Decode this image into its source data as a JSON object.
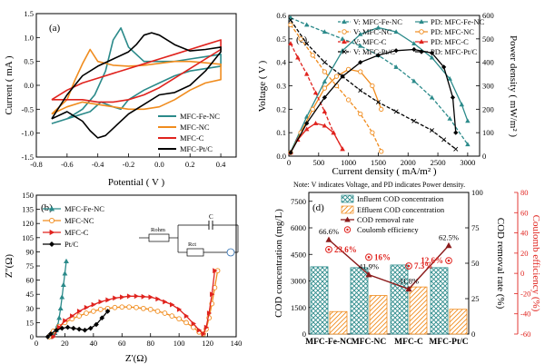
{
  "figure": {
    "note": "Note: V indicates Voltage, and PD indicates Power density."
  },
  "chart_data": [
    {
      "type": "line",
      "panel": "(a)",
      "xlabel": "Potential ( V )",
      "ylabel": "Current ( mA )",
      "xlim": [
        -0.8,
        0.5
      ],
      "ylim": [
        -1.5,
        1.5
      ],
      "xticks": [
        -0.8,
        -0.6,
        -0.4,
        -0.2,
        0.0,
        0.2,
        0.4
      ],
      "xtick_labels": [
        "-0.8",
        "-0.6",
        "-0.4",
        "-0.2",
        "0.0",
        "0.2",
        "0.4"
      ],
      "yticks": [
        -1.5,
        -1.0,
        -0.5,
        0.0,
        0.5,
        1.0,
        1.5
      ],
      "ytick_labels": [
        "-1.5",
        "-1.0",
        "-0.5",
        "0.0",
        "0.5",
        "1.0",
        "1.5"
      ],
      "legend_position": "bottom-right",
      "series": [
        {
          "name": "MFC-Fe-NC",
          "color": "#2b8a8a",
          "x": [
            -0.7,
            -0.6,
            -0.5,
            -0.42,
            -0.35,
            -0.3,
            -0.25,
            -0.2,
            -0.1,
            0.0,
            0.1,
            0.2,
            0.3,
            0.4,
            0.4,
            0.3,
            0.2,
            0.1,
            0.0,
            -0.1,
            -0.2,
            -0.25,
            -0.3,
            -0.38,
            -0.45,
            -0.55,
            -0.65,
            -0.7
          ],
          "y": [
            -0.8,
            -0.7,
            -0.5,
            -0.2,
            0.3,
            0.95,
            1.2,
            0.8,
            0.5,
            0.5,
            0.5,
            0.55,
            0.6,
            0.65,
            0.4,
            0.35,
            0.3,
            0.2,
            0.05,
            -0.1,
            -0.3,
            -0.5,
            -0.45,
            -0.35,
            -0.55,
            -0.65,
            -0.75,
            -0.8
          ]
        },
        {
          "name": "MFC-NC",
          "color": "#f08c1e",
          "x": [
            -0.7,
            -0.6,
            -0.55,
            -0.5,
            -0.45,
            -0.4,
            -0.3,
            -0.2,
            -0.1,
            0.0,
            0.1,
            0.2,
            0.3,
            0.4,
            0.4,
            0.3,
            0.2,
            0.1,
            0.0,
            -0.1,
            -0.2,
            -0.3,
            -0.4,
            -0.5,
            -0.6,
            -0.7
          ],
          "y": [
            -0.6,
            -0.3,
            0.1,
            0.45,
            0.75,
            0.5,
            0.42,
            0.4,
            0.42,
            0.46,
            0.5,
            0.5,
            0.47,
            0.44,
            0.12,
            0.05,
            -0.1,
            -0.3,
            -0.45,
            -0.5,
            -0.5,
            -0.45,
            -0.4,
            -0.35,
            -0.45,
            -0.6
          ]
        },
        {
          "name": "MFC-C",
          "color": "#e0231e",
          "x": [
            -0.7,
            -0.6,
            -0.5,
            -0.4,
            -0.3,
            -0.2,
            -0.1,
            0.0,
            0.1,
            0.2,
            0.3,
            0.4,
            0.4,
            0.3,
            0.2,
            0.1,
            0.0,
            -0.1,
            -0.2,
            -0.3,
            -0.4,
            -0.5,
            -0.6,
            -0.7
          ],
          "y": [
            -0.3,
            -0.1,
            0.05,
            0.15,
            0.25,
            0.35,
            0.45,
            0.55,
            0.65,
            0.75,
            0.85,
            0.95,
            0.75,
            0.55,
            0.35,
            0.15,
            -0.05,
            -0.2,
            -0.3,
            -0.35,
            -0.35,
            -0.3,
            -0.3,
            -0.3
          ]
        },
        {
          "name": "MFC-Pt/C",
          "color": "#000000",
          "x": [
            -0.7,
            -0.6,
            -0.5,
            -0.4,
            -0.3,
            -0.2,
            -0.15,
            -0.1,
            -0.05,
            0.0,
            0.1,
            0.2,
            0.3,
            0.4,
            0.4,
            0.3,
            0.2,
            0.1,
            0.0,
            -0.1,
            -0.2,
            -0.3,
            -0.35,
            -0.4,
            -0.45,
            -0.5,
            -0.6,
            -0.7
          ],
          "y": [
            -0.7,
            -0.2,
            0.2,
            0.4,
            0.55,
            0.7,
            0.85,
            1.05,
            1.1,
            1.05,
            0.85,
            0.72,
            0.75,
            0.8,
            0.7,
            0.3,
            0.0,
            -0.15,
            -0.2,
            -0.4,
            -0.6,
            -0.9,
            -1.05,
            -1.1,
            -0.95,
            -0.75,
            -0.55,
            -0.7
          ]
        }
      ]
    },
    {
      "type": "line",
      "panel": "(b)",
      "xlabel": "Z'(Ω)",
      "ylabel": "Z''(Ω)",
      "xlim": [
        0,
        140
      ],
      "ylim": [
        0,
        150
      ],
      "xticks": [
        0,
        20,
        40,
        60,
        80,
        100,
        120,
        140
      ],
      "xtick_labels": [
        "0",
        "20",
        "40",
        "60",
        "80",
        "100",
        "120",
        "140"
      ],
      "yticks": [
        0,
        15,
        30,
        45,
        60,
        75,
        90,
        105,
        120,
        135,
        150
      ],
      "ytick_labels": [
        "0",
        "15",
        "30",
        "45",
        "60",
        "75",
        "90",
        "105",
        "120",
        "135",
        "150"
      ],
      "legend_position": "top-left",
      "circuit_labels": [
        "C",
        "Rohm",
        "Rct"
      ],
      "series": [
        {
          "name": "MFC-Fe-NC",
          "color": "#2b8a8a",
          "marker": "triangle",
          "x": [
            10,
            11,
            12,
            13,
            14,
            15,
            16,
            17,
            18,
            19,
            20,
            21
          ],
          "y": [
            0,
            1,
            2,
            4,
            7,
            12,
            20,
            30,
            42,
            55,
            67,
            80
          ]
        },
        {
          "name": "MFC-NC",
          "color": "#f08c1e",
          "marker": "circle",
          "x": [
            9,
            12,
            16,
            20,
            25,
            30,
            35,
            40,
            45,
            50,
            55,
            60,
            65,
            70,
            75,
            80,
            85,
            90,
            95,
            100,
            105,
            110,
            114,
            117,
            119,
            121,
            123,
            125,
            127
          ],
          "y": [
            0,
            6,
            11,
            15,
            19,
            22,
            25,
            27,
            29,
            30,
            31,
            31.5,
            31.5,
            31,
            30,
            29,
            27,
            25,
            22,
            19,
            15,
            10,
            5,
            3,
            8,
            20,
            35,
            52,
            70
          ]
        },
        {
          "name": "MFC-C",
          "color": "#e0231e",
          "marker": "right-triangle",
          "x": [
            12,
            16,
            20,
            25,
            30,
            35,
            40,
            45,
            50,
            55,
            60,
            65,
            70,
            75,
            80,
            85,
            90,
            95,
            100,
            105,
            110,
            114,
            117,
            119,
            121,
            123,
            125
          ],
          "y": [
            0,
            10,
            17,
            22,
            27,
            31,
            34,
            37,
            39,
            41,
            42,
            43,
            43,
            42.5,
            42,
            40,
            37,
            34,
            29,
            22,
            14,
            7,
            3,
            10,
            25,
            45,
            70
          ]
        },
        {
          "name": "Pt/C",
          "color": "#000000",
          "marker": "diamond",
          "x": [
            8,
            10,
            14,
            18,
            22,
            26,
            30,
            34,
            38,
            42,
            46,
            50
          ],
          "y": [
            0,
            3,
            7,
            9,
            10,
            9,
            8,
            7,
            9,
            13,
            20,
            27
          ]
        }
      ]
    },
    {
      "type": "line",
      "panel": "(c)",
      "xlabel": "Current density ( mA/m² )",
      "ylabel_left": "Voltage ( V )",
      "ylabel_right": "Power density ( mW/m² )",
      "xlim": [
        0,
        3200
      ],
      "ylim_left": [
        0,
        0.6
      ],
      "ylim_right": [
        0,
        600
      ],
      "xticks": [
        0,
        500,
        1000,
        1500,
        2000,
        2500,
        3000
      ],
      "xtick_labels": [
        "0",
        "500",
        "1000",
        "1500",
        "2000",
        "2500",
        "3000"
      ],
      "yticks_left": [
        0,
        0.1,
        0.2,
        0.3,
        0.4,
        0.5,
        0.6
      ],
      "ytick_labels_left": [
        "0.0",
        "0.1",
        "0.2",
        "0.3",
        "0.4",
        "0.5",
        "0.6"
      ],
      "yticks_right": [
        0,
        100,
        200,
        300,
        400,
        500,
        600
      ],
      "ytick_labels_right": [
        "0",
        "100",
        "200",
        "300",
        "400",
        "500",
        "600"
      ],
      "legend_position": "top",
      "series": [
        {
          "name": "V: MFC-Fe-NC",
          "color": "#2b8a8a",
          "axis": "left",
          "marker": "triangle",
          "x": [
            30,
            300,
            600,
            900,
            1200,
            1500,
            1800,
            2100,
            2400,
            2700,
            3000
          ],
          "y": [
            0.59,
            0.56,
            0.53,
            0.5,
            0.47,
            0.43,
            0.38,
            0.32,
            0.25,
            0.16,
            0.05
          ]
        },
        {
          "name": "PD: MFC-Fe-NC",
          "color": "#2b8a8a",
          "axis": "right",
          "marker": "triangle",
          "x": [
            30,
            300,
            600,
            900,
            1200,
            1500,
            1800,
            2100,
            2400,
            2700,
            2900,
            3000
          ],
          "y": [
            18,
            168,
            318,
            450,
            520,
            548,
            530,
            480,
            420,
            330,
            220,
            150
          ]
        },
        {
          "name": "V: MFC-NC",
          "color": "#f08c1e",
          "axis": "left",
          "marker": "circle",
          "x": [
            30,
            200,
            400,
            600,
            800,
            1000,
            1200,
            1400,
            1550
          ],
          "y": [
            0.56,
            0.5,
            0.43,
            0.36,
            0.3,
            0.24,
            0.18,
            0.1,
            0.02
          ]
        },
        {
          "name": "PD: MFC-NC",
          "color": "#f08c1e",
          "axis": "right",
          "marker": "circle",
          "x": [
            30,
            200,
            400,
            600,
            800,
            1000,
            1200,
            1400,
            1550
          ],
          "y": [
            15,
            100,
            200,
            290,
            340,
            370,
            360,
            300,
            200
          ]
        },
        {
          "name": "V: MFC-C",
          "color": "#e0231e",
          "axis": "left",
          "marker": "triangle",
          "x": [
            30,
            150,
            300,
            450,
            600,
            750,
            900
          ],
          "y": [
            0.48,
            0.42,
            0.35,
            0.27,
            0.19,
            0.1,
            0.03
          ]
        },
        {
          "name": "PD: MFC-C",
          "color": "#e0231e",
          "axis": "right",
          "marker": "triangle",
          "x": [
            30,
            150,
            300,
            450,
            600,
            750,
            900
          ],
          "y": [
            15,
            70,
            115,
            140,
            130,
            100,
            30
          ]
        },
        {
          "name": "V: MFC-Pt/C",
          "color": "#000000",
          "axis": "left",
          "marker": "cross",
          "x": [
            30,
            300,
            600,
            900,
            1200,
            1500,
            1800,
            2100,
            2400,
            2600,
            2800
          ],
          "y": [
            0.58,
            0.48,
            0.4,
            0.34,
            0.28,
            0.23,
            0.19,
            0.15,
            0.11,
            0.07,
            0.03
          ]
        },
        {
          "name": "PD: MFC-Pt/C",
          "color": "#000000",
          "axis": "right",
          "marker": "diamond",
          "x": [
            30,
            300,
            600,
            900,
            1200,
            1500,
            1800,
            2100,
            2400,
            2600,
            2750,
            2800
          ],
          "y": [
            15,
            140,
            250,
            340,
            400,
            430,
            450,
            455,
            440,
            380,
            250,
            100
          ]
        }
      ]
    },
    {
      "type": "bar",
      "panel": "(d)",
      "categories": [
        "MFC-Fe-NC",
        "MFC-NC",
        "MFC-C",
        "MFC-Pt/C"
      ],
      "ylabel_left": "COD concentration (mg/L)",
      "ylabel_right1": "COD removal rate (%)",
      "ylabel_right2": "Coulomb efficiency (%)",
      "ylim_left": [
        0,
        8000
      ],
      "ylim_right1": [
        0,
        100
      ],
      "ylim_right2": [
        -60,
        80
      ],
      "yticks_left": [
        0,
        1500,
        3000,
        4500,
        6000,
        7500
      ],
      "ytick_labels_left": [
        "0",
        "1500",
        "3000",
        "4500",
        "6000",
        "7500"
      ],
      "yticks_right1": [
        0,
        25,
        50,
        75,
        100
      ],
      "ytick_labels_right1": [
        "0",
        "25",
        "50",
        "75",
        "100"
      ],
      "yticks_right2": [
        -60,
        -40,
        -20,
        0,
        20,
        40,
        60,
        80
      ],
      "ytick_labels_right2": [
        "-60",
        "-40",
        "-20",
        "0",
        "20",
        "40",
        "60",
        "80"
      ],
      "legend_position": "top-right",
      "series": [
        {
          "name": "Influent COD concentration",
          "color": "#2b8a8a",
          "axis": "left",
          "type": "bar",
          "values": [
            3800,
            3750,
            3900,
            3750
          ]
        },
        {
          "name": "Effluent COD concentration",
          "color": "#f08c1e",
          "axis": "left",
          "type": "bar",
          "values": [
            1270,
            2180,
            2660,
            1400
          ]
        },
        {
          "name": "COD removal rate",
          "color": "#8b1a1a",
          "axis": "right1",
          "type": "line",
          "values": [
            66.6,
            41.9,
            31.8,
            62.5
          ],
          "labels": [
            "66.6%",
            "41.9%",
            "31.8%",
            "62.5%"
          ]
        },
        {
          "name": "Coulomb efficiency",
          "color": "#e0231e",
          "axis": "right2",
          "type": "scatter",
          "values": [
            23.6,
            16,
            7.3,
            12.6
          ],
          "labels": [
            "23.6%",
            "16%",
            "7.3%",
            "12.6%"
          ]
        }
      ]
    }
  ]
}
